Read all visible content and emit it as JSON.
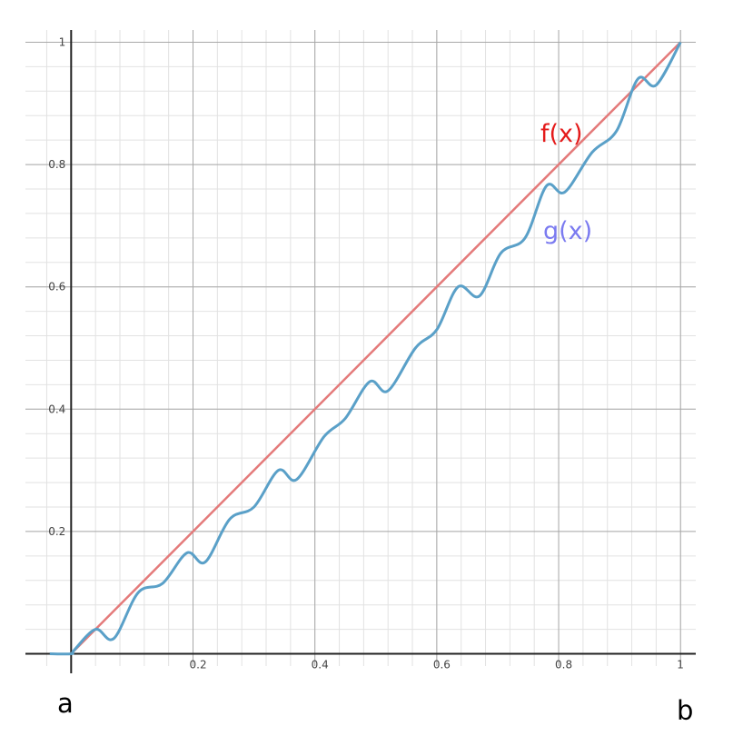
{
  "chart_data": {
    "type": "line",
    "xlim": [
      -0.075,
      1.025
    ],
    "ylim": [
      -0.02,
      1.02
    ],
    "grid": true,
    "x_ticks": [
      0.2,
      0.4,
      0.6,
      0.8,
      1
    ],
    "y_ticks": [
      0.2,
      0.4,
      0.6,
      0.8,
      1
    ],
    "x_tick_labels": [
      "0.2",
      "0.4",
      "0.6",
      "0.8",
      "1"
    ],
    "y_tick_labels": [
      "0.2",
      "0.4",
      "0.6",
      "0.8",
      "1"
    ],
    "series": [
      {
        "name": "f(x)",
        "color": "#e47a7a",
        "label_color": "#e41a1a",
        "x": [
          0,
          1
        ],
        "y": [
          0,
          1
        ]
      },
      {
        "name": "g(x)",
        "color": "#5aa0c8",
        "label_color": "#7b7bf0",
        "x": [
          -0.035,
          0,
          0.005,
          0.04,
          0.07,
          0.11,
          0.15,
          0.19,
          0.22,
          0.26,
          0.3,
          0.34,
          0.37,
          0.415,
          0.45,
          0.49,
          0.52,
          0.565,
          0.6,
          0.635,
          0.67,
          0.705,
          0.745,
          0.78,
          0.81,
          0.855,
          0.895,
          0.93,
          0.96,
          1
        ],
        "y": [
          0,
          0,
          0.006,
          0.04,
          0.025,
          0.1,
          0.115,
          0.165,
          0.15,
          0.22,
          0.24,
          0.3,
          0.285,
          0.355,
          0.385,
          0.445,
          0.43,
          0.5,
          0.53,
          0.6,
          0.585,
          0.655,
          0.68,
          0.765,
          0.755,
          0.82,
          0.855,
          0.94,
          0.93,
          1
        ]
      }
    ],
    "annotations": [
      {
        "text": "a",
        "x": 0
      },
      {
        "text": "b",
        "x": 1
      }
    ]
  }
}
